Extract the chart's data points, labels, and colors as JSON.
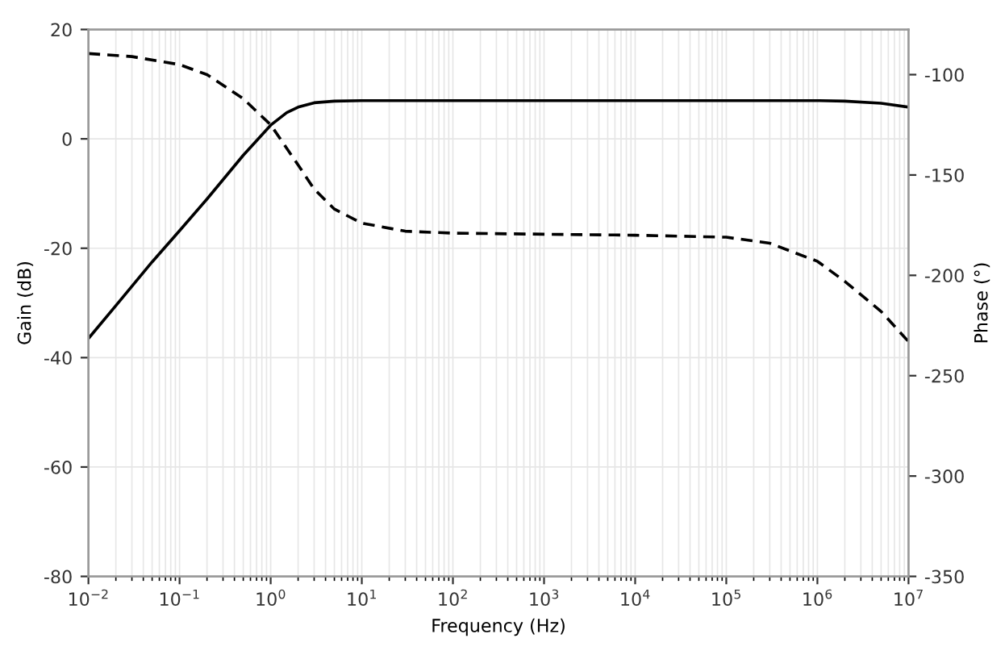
{
  "chart_data": {
    "type": "line",
    "xlabel": "Frequency (Hz)",
    "ylabel": "Gain (dB)",
    "y2label": "Phase (°)",
    "log": "x",
    "grid": true,
    "xlim": [
      0.01,
      10000000
    ],
    "xticks": [
      {
        "value": 0.01,
        "label": "10$^{−2}$"
      },
      {
        "value": 0.1,
        "label": "10$^{−1}$"
      },
      {
        "value": 1,
        "label": "10$^{0}$"
      },
      {
        "value": 10,
        "label": "10$^{1}$"
      },
      {
        "value": 100,
        "label": "10$^{2}$"
      },
      {
        "value": 1000,
        "label": "10$^{3}$"
      },
      {
        "value": 10000,
        "label": "10$^{4}$"
      },
      {
        "value": 100000,
        "label": "10$^{5}$"
      },
      {
        "value": 1000000,
        "label": "10$^{6}$"
      },
      {
        "value": 10000000,
        "label": "10$^{7}$"
      }
    ],
    "ylim": [
      -80,
      20
    ],
    "yticks": [
      -80,
      -60,
      -40,
      -20,
      0,
      20
    ],
    "y2lim": [
      -350,
      -77.5
    ],
    "y2ticks": [
      -350,
      -300,
      -250,
      -200,
      -150,
      -100
    ],
    "series": [
      {
        "color": "#000000",
        "line_style": "solid",
        "x": [
          0.01,
          0.02,
          0.05,
          0.1,
          0.2,
          0.5,
          1,
          1.5,
          2,
          3,
          5,
          10,
          100,
          1000,
          10000,
          100000,
          1000000,
          2000000,
          5000000,
          10000000
        ],
        "values": [
          -36.5,
          -30.5,
          -22.5,
          -16.8,
          -11,
          -3,
          2.5,
          4.8,
          5.8,
          6.6,
          6.9,
          7,
          7,
          7,
          7,
          7,
          7,
          6.9,
          6.5,
          5.8
        ]
      },
      {
        "color": "#000000",
        "line_style": "dashed",
        "axis": "y2",
        "x": [
          0.01,
          0.03,
          0.1,
          0.2,
          0.5,
          1,
          2,
          3,
          5,
          10,
          30,
          100,
          1000,
          10000,
          100000,
          300000,
          1000000,
          2000000,
          5000000,
          10000000
        ],
        "values": [
          -89.5,
          -91,
          -95,
          -100,
          -112,
          -125,
          -145,
          -157,
          -167,
          -174,
          -178,
          -179,
          -179.5,
          -180,
          -181,
          -184,
          -193,
          -203,
          -218,
          -233
        ]
      }
    ]
  }
}
